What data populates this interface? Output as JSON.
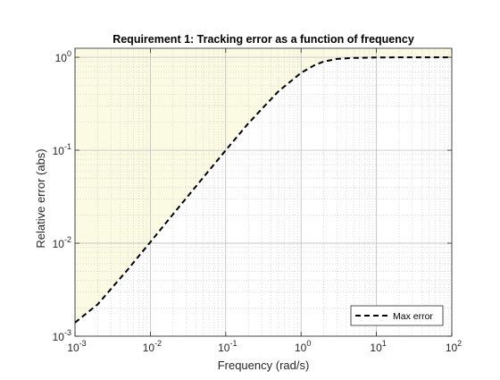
{
  "chart_data": {
    "type": "line",
    "title": "Requirement 1: Tracking error as a function of frequency",
    "xlabel": "Frequency (rad/s)",
    "ylabel": "Relative error (abs)",
    "xscale": "log",
    "yscale": "log",
    "xlim": [
      0.001,
      100
    ],
    "ylim": [
      0.001,
      1.25
    ],
    "grid": true,
    "x_ticks": [
      {
        "value": 0.001,
        "base": "10",
        "exp": "-3"
      },
      {
        "value": 0.01,
        "base": "10",
        "exp": "-2"
      },
      {
        "value": 0.1,
        "base": "10",
        "exp": "-1"
      },
      {
        "value": 1,
        "base": "10",
        "exp": "0"
      },
      {
        "value": 10,
        "base": "10",
        "exp": "1"
      },
      {
        "value": 100,
        "base": "10",
        "exp": "2"
      }
    ],
    "y_ticks": [
      {
        "value": 0.001,
        "base": "10",
        "exp": "-3"
      },
      {
        "value": 0.01,
        "base": "10",
        "exp": "-2"
      },
      {
        "value": 0.1,
        "base": "10",
        "exp": "-1"
      },
      {
        "value": 1,
        "base": "10",
        "exp": "0"
      }
    ],
    "series": [
      {
        "name": "Max error",
        "style": "dashed",
        "color": "#000000",
        "x": [
          0.001,
          0.002,
          0.005,
          0.01,
          0.02,
          0.05,
          0.1,
          0.2,
          0.5,
          1,
          1.5,
          2,
          3,
          5,
          10,
          20,
          50,
          100
        ],
        "y": [
          0.0014,
          0.0022,
          0.0052,
          0.0103,
          0.0205,
          0.0506,
          0.1,
          0.195,
          0.43,
          0.68,
          0.82,
          0.9,
          0.96,
          0.985,
          0.995,
          1.0,
          1.0,
          1.0
        ]
      }
    ],
    "shaded_region": {
      "description": "requirement violation area above Max error curve",
      "color": "#fbfae3"
    },
    "legend": {
      "position": "bottom-right",
      "entries": [
        "Max error"
      ]
    }
  }
}
